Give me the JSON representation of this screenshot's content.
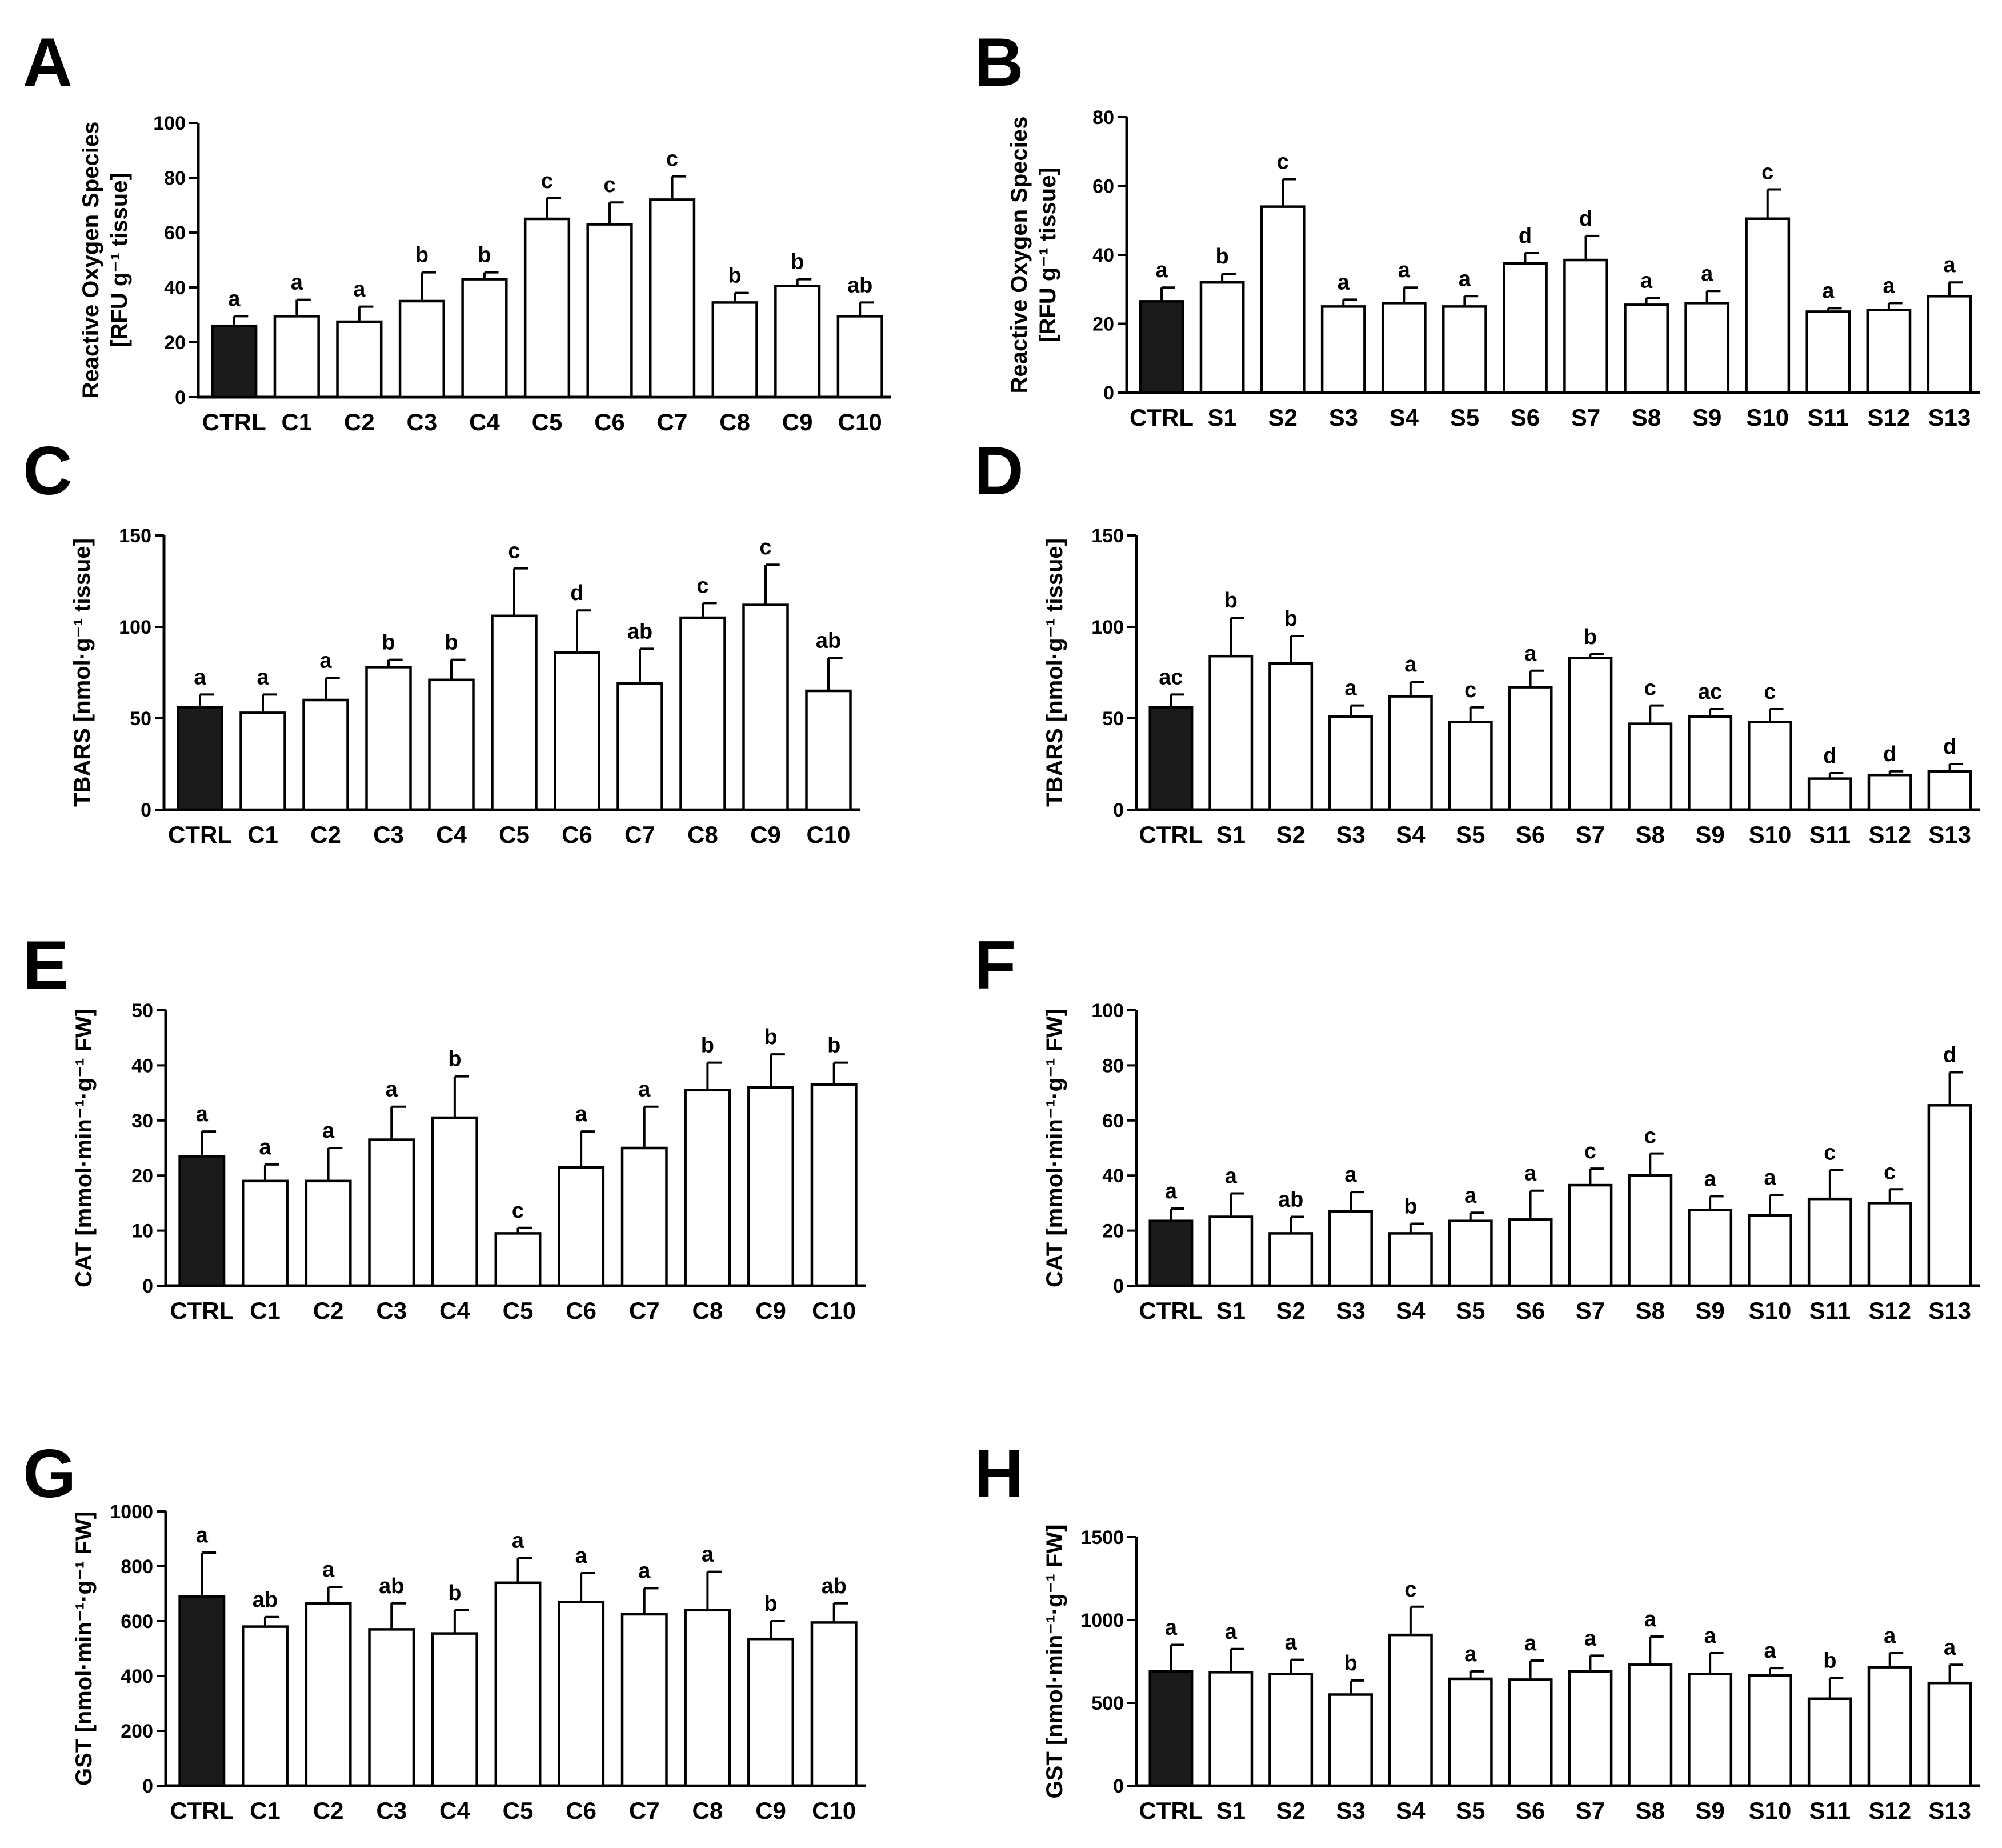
{
  "chart_data": [
    {
      "panel": "A",
      "type": "bar",
      "ylabel": [
        "Reactive Oxygen  Species",
        "[RFU g⁻¹ tissue]"
      ],
      "ylim": [
        0,
        100
      ],
      "yticks": [
        0,
        20,
        40,
        60,
        80,
        100
      ],
      "categories": [
        "CTRL",
        "C1",
        "C2",
        "C3",
        "C4",
        "C5",
        "C6",
        "C7",
        "C8",
        "C9",
        "C10"
      ],
      "values": [
        26,
        29.5,
        27.5,
        35,
        43,
        65,
        63,
        72,
        34.5,
        40.5,
        29.5
      ],
      "errors": [
        3.5,
        6,
        5.5,
        10.5,
        2.5,
        7.5,
        8,
        8.5,
        3.5,
        2.5,
        5
      ],
      "significance": [
        "a",
        "a",
        "a",
        "b",
        "b",
        "c",
        "c",
        "c",
        "b",
        "b",
        "ab"
      ],
      "control_color": "#1a1a1a",
      "bar_color": "#ffffff"
    },
    {
      "panel": "B",
      "type": "bar",
      "ylabel": [
        "Reactive Oxygen  Species",
        "[RFU g⁻¹ tissue]"
      ],
      "ylim": [
        0,
        80
      ],
      "yticks": [
        0,
        20,
        40,
        60,
        80
      ],
      "categories": [
        "CTRL",
        "S1",
        "S2",
        "S3",
        "S4",
        "S5",
        "S6",
        "S7",
        "S8",
        "S9",
        "S10",
        "S11",
        "S12",
        "S13"
      ],
      "values": [
        26.5,
        32,
        54,
        25,
        26,
        25,
        37.5,
        38.5,
        25.5,
        26,
        50.5,
        23.5,
        24,
        28
      ],
      "errors": [
        4,
        2.5,
        8,
        2,
        4.5,
        3,
        3,
        7,
        2,
        3.5,
        8.5,
        1,
        2,
        4
      ],
      "significance": [
        "a",
        "b",
        "c",
        "a",
        "a",
        "a",
        "d",
        "d",
        "a",
        "a",
        "c",
        "a",
        "a",
        "a"
      ],
      "control_color": "#1a1a1a",
      "bar_color": "#ffffff"
    },
    {
      "panel": "C",
      "type": "bar",
      "ylabel": [
        "TBARS [nmol·g⁻¹ tissue]"
      ],
      "ylim": [
        0,
        150
      ],
      "yticks": [
        0,
        50,
        100,
        150
      ],
      "categories": [
        "CTRL",
        "C1",
        "C2",
        "C3",
        "C4",
        "C5",
        "C6",
        "C7",
        "C8",
        "C9",
        "C10"
      ],
      "values": [
        56,
        53,
        60,
        78,
        71,
        106,
        86,
        69,
        105,
        112,
        65
      ],
      "errors": [
        7,
        10,
        12,
        4,
        11,
        26,
        23,
        19,
        8,
        22,
        18
      ],
      "significance": [
        "a",
        "a",
        "a",
        "b",
        "b",
        "c",
        "d",
        "ab",
        "c",
        "c",
        "ab"
      ],
      "control_color": "#1a1a1a",
      "bar_color": "#ffffff"
    },
    {
      "panel": "D",
      "type": "bar",
      "ylabel": [
        "TBARS [nmol·g⁻¹ tissue]"
      ],
      "ylim": [
        0,
        150
      ],
      "yticks": [
        0,
        50,
        100,
        150
      ],
      "categories": [
        "CTRL",
        "S1",
        "S2",
        "S3",
        "S4",
        "S5",
        "S6",
        "S7",
        "S8",
        "S9",
        "S10",
        "S11",
        "S12",
        "S13"
      ],
      "values": [
        56,
        84,
        80,
        51,
        62,
        48,
        67,
        83,
        47,
        51,
        48,
        17,
        19,
        21
      ],
      "errors": [
        7,
        21,
        15,
        6,
        8,
        8,
        9,
        2,
        10,
        4,
        7,
        3,
        2,
        4
      ],
      "significance": [
        "ac",
        "b",
        "b",
        "a",
        "a",
        "c",
        "a",
        "b",
        "c",
        "ac",
        "c",
        "d",
        "d",
        "d"
      ],
      "control_color": "#1a1a1a",
      "bar_color": "#ffffff"
    },
    {
      "panel": "E",
      "type": "bar",
      "ylabel": [
        "CAT [mmol·min⁻¹·g⁻¹ FW]"
      ],
      "ylim": [
        0,
        50
      ],
      "yticks": [
        0,
        10,
        20,
        30,
        40,
        50
      ],
      "categories": [
        "CTRL",
        "C1",
        "C2",
        "C3",
        "C4",
        "C5",
        "C6",
        "C7",
        "C8",
        "C9",
        "C10"
      ],
      "values": [
        23.5,
        19,
        19,
        26.5,
        30.5,
        9.5,
        21.5,
        25,
        35.5,
        36,
        36.5
      ],
      "errors": [
        4.5,
        3,
        6,
        6,
        7.5,
        1,
        6.5,
        7.5,
        5,
        6,
        4
      ],
      "significance": [
        "a",
        "a",
        "a",
        "a",
        "b",
        "c",
        "a",
        "a",
        "b",
        "b",
        "b"
      ],
      "control_color": "#1a1a1a",
      "bar_color": "#ffffff"
    },
    {
      "panel": "F",
      "type": "bar",
      "ylabel": [
        "CAT [mmol·min⁻¹·g⁻¹ FW]"
      ],
      "ylim": [
        0,
        100
      ],
      "yticks": [
        0,
        20,
        40,
        60,
        80,
        100
      ],
      "categories": [
        "CTRL",
        "S1",
        "S2",
        "S3",
        "S4",
        "S5",
        "S6",
        "S7",
        "S8",
        "S9",
        "S10",
        "S11",
        "S12",
        "S13"
      ],
      "values": [
        23.5,
        25,
        19,
        27,
        19,
        23.5,
        24,
        36.5,
        40,
        27.5,
        25.5,
        31.5,
        30,
        65.5
      ],
      "errors": [
        4.5,
        8.5,
        6,
        7,
        3.5,
        3,
        10.5,
        6,
        8,
        5,
        7.5,
        10.5,
        5,
        12
      ],
      "significance": [
        "a",
        "a",
        "ab",
        "a",
        "b",
        "a",
        "a",
        "c",
        "c",
        "a",
        "a",
        "c",
        "c",
        "d"
      ],
      "control_color": "#1a1a1a",
      "bar_color": "#ffffff"
    },
    {
      "panel": "G",
      "type": "bar",
      "ylabel": [
        "GST [nmol·min⁻¹·g⁻¹ FW]"
      ],
      "ylim": [
        0,
        1000
      ],
      "yticks": [
        0,
        200,
        400,
        600,
        800,
        1000
      ],
      "categories": [
        "CTRL",
        "C1",
        "C2",
        "C3",
        "C4",
        "C5",
        "C6",
        "C7",
        "C8",
        "C9",
        "C10"
      ],
      "values": [
        690,
        580,
        665,
        570,
        555,
        740,
        670,
        625,
        640,
        535,
        595
      ],
      "errors": [
        160,
        35,
        60,
        95,
        85,
        90,
        105,
        95,
        140,
        65,
        70
      ],
      "significance": [
        "a",
        "ab",
        "a",
        "ab",
        "b",
        "a",
        "a",
        "a",
        "a",
        "b",
        "ab"
      ],
      "control_color": "#1a1a1a",
      "bar_color": "#ffffff"
    },
    {
      "panel": "H",
      "type": "bar",
      "ylabel": [
        "GST [nmol·min⁻¹·g⁻¹ FW]"
      ],
      "ylim": [
        0,
        1500
      ],
      "yticks": [
        0,
        500,
        1000,
        1500
      ],
      "categories": [
        "CTRL",
        "S1",
        "S2",
        "S3",
        "S4",
        "S5",
        "S6",
        "S7",
        "S8",
        "S9",
        "S10",
        "S11",
        "S12",
        "S13"
      ],
      "values": [
        690,
        685,
        675,
        550,
        910,
        645,
        640,
        690,
        730,
        675,
        665,
        525,
        715,
        620
      ],
      "errors": [
        160,
        140,
        85,
        85,
        170,
        45,
        115,
        95,
        170,
        125,
        45,
        125,
        85,
        110
      ],
      "significance": [
        "a",
        "a",
        "a",
        "b",
        "c",
        "a",
        "a",
        "a",
        "a",
        "a",
        "a",
        "b",
        "a",
        "a"
      ],
      "control_color": "#1a1a1a",
      "bar_color": "#ffffff"
    }
  ]
}
